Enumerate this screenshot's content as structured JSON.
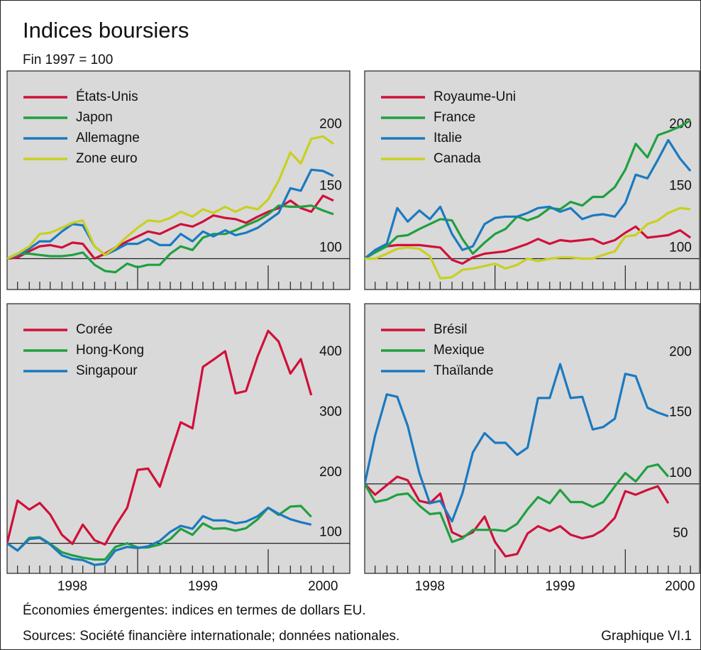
{
  "title": "Indices boursiers",
  "subtitle": "Fin 1997 = 100",
  "notes": [
    "Économies émergentes: indices en termes de dollars EU.",
    "Sources: Société financière internationale; données nationales."
  ],
  "figure_label": "Graphique VI.1",
  "chart_data": [
    {
      "type": "line",
      "legend": "upper left",
      "baseline": 100,
      "x": [
        1998,
        1998.08,
        1998.17,
        1998.25,
        1998.33,
        1998.42,
        1998.5,
        1998.58,
        1998.67,
        1998.75,
        1998.83,
        1998.92,
        1999,
        1999.08,
        1999.17,
        1999.25,
        1999.33,
        1999.42,
        1999.5,
        1999.58,
        1999.67,
        1999.75,
        1999.83,
        1999.92,
        2000,
        2000.08,
        2000.17,
        2000.25,
        2000.33,
        2000.42,
        2000.5
      ],
      "xlim": [
        1998,
        2000.625
      ],
      "xmajorticks": [
        1999,
        2000
      ],
      "xminorticks": [
        1998.08,
        1998.17,
        1998.25,
        1998.33,
        1998.42,
        1998.5,
        1998.58,
        1998.67,
        1998.75,
        1998.83,
        1998.92,
        1999.08,
        1999.17,
        1999.25,
        1999.33,
        1999.42,
        1999.5,
        1999.58,
        1999.67,
        1999.75,
        1999.83,
        1999.92,
        2000.08,
        2000.17,
        2000.25,
        2000.33,
        2000.42,
        2000.5
      ],
      "ylim": [
        75,
        252
      ],
      "yticks": [
        100,
        150,
        200
      ],
      "series": [
        {
          "name": "États-Unis",
          "color": "#d0103a",
          "values": [
            100,
            101,
            106,
            110,
            111,
            109,
            113,
            112,
            100,
            104,
            109,
            114,
            118,
            122,
            120,
            124,
            128,
            126,
            130,
            135,
            133,
            132,
            129,
            134,
            138,
            141,
            147,
            141,
            138,
            151,
            147
          ]
        },
        {
          "name": "Japon",
          "color": "#1fa040",
          "values": [
            100,
            104,
            104,
            103,
            102,
            102,
            103,
            105,
            95,
            90,
            89,
            96,
            93,
            95,
            95,
            104,
            110,
            107,
            117,
            120,
            120,
            123,
            127,
            131,
            136,
            143,
            142,
            142,
            143,
            139,
            136
          ]
        },
        {
          "name": "Allemagne",
          "color": "#1a7ac0",
          "values": [
            100,
            103,
            108,
            114,
            114,
            122,
            128,
            127,
            110,
            103,
            107,
            112,
            112,
            116,
            111,
            111,
            120,
            114,
            122,
            118,
            123,
            119,
            121,
            125,
            131,
            137,
            157,
            155,
            172,
            171,
            167
          ]
        },
        {
          "name": "Zone euro",
          "color": "#c8d020",
          "values": [
            100,
            104,
            110,
            120,
            121,
            125,
            129,
            131,
            110,
            103,
            109,
            118,
            125,
            131,
            130,
            133,
            138,
            134,
            140,
            137,
            142,
            138,
            142,
            140,
            148,
            163,
            186,
            177,
            197,
            199,
            193
          ]
        }
      ]
    },
    {
      "type": "line",
      "legend": "upper left",
      "baseline": 100,
      "x": [
        1998,
        1998.08,
        1998.17,
        1998.25,
        1998.33,
        1998.42,
        1998.5,
        1998.58,
        1998.67,
        1998.75,
        1998.83,
        1998.92,
        1999,
        1999.08,
        1999.17,
        1999.25,
        1999.33,
        1999.42,
        1999.5,
        1999.58,
        1999.67,
        1999.75,
        1999.83,
        1999.92,
        2000,
        2000.08,
        2000.17,
        2000.25,
        2000.33,
        2000.42,
        2000.5
      ],
      "xlim": [
        1998,
        2000.57
      ],
      "xmajorticks": [
        1999,
        2000
      ],
      "xminorticks": [
        1998.08,
        1998.17,
        1998.25,
        1998.33,
        1998.42,
        1998.5,
        1998.58,
        1998.67,
        1998.75,
        1998.83,
        1998.92,
        1999.08,
        1999.17,
        1999.25,
        1999.33,
        1999.42,
        1999.5,
        1999.58,
        1999.67,
        1999.75,
        1999.83,
        1999.92,
        2000.08,
        2000.17,
        2000.25,
        2000.33,
        2000.42,
        2000.5
      ],
      "ylim": [
        75,
        252
      ],
      "yticks": [
        100,
        150,
        200
      ],
      "series": [
        {
          "name": "Royaume-Uni",
          "color": "#d0103a",
          "values": [
            100,
            106,
            110,
            111,
            111,
            111,
            110,
            109,
            99,
            96,
            101,
            104,
            105,
            106,
            109,
            112,
            116,
            112,
            115,
            114,
            115,
            116,
            112,
            115,
            121,
            126,
            117,
            118,
            119,
            123,
            117
          ]
        },
        {
          "name": "France",
          "color": "#1fa040",
          "values": [
            100,
            105,
            110,
            118,
            119,
            124,
            128,
            132,
            131,
            116,
            104,
            113,
            120,
            124,
            134,
            131,
            134,
            141,
            140,
            146,
            143,
            150,
            150,
            158,
            172,
            193,
            182,
            200,
            203,
            207,
            212
          ]
        },
        {
          "name": "Italie",
          "color": "#1a7ac0",
          "values": [
            100,
            107,
            112,
            141,
            130,
            139,
            132,
            142,
            120,
            107,
            110,
            128,
            133,
            134,
            134,
            137,
            141,
            142,
            138,
            141,
            132,
            135,
            136,
            134,
            145,
            168,
            165,
            180,
            196,
            181,
            171
          ]
        },
        {
          "name": "Canada",
          "color": "#c8d020",
          "values": [
            100,
            100,
            104,
            108,
            109,
            108,
            102,
            84,
            85,
            91,
            92,
            94,
            96,
            92,
            95,
            100,
            98,
            100,
            101,
            101,
            100,
            100,
            103,
            106,
            118,
            119,
            128,
            131,
            137,
            141,
            140
          ]
        }
      ]
    },
    {
      "type": "line",
      "legend": "upper left",
      "baseline": 100,
      "x": [
        1998,
        1998.08,
        1998.17,
        1998.25,
        1998.33,
        1998.42,
        1998.5,
        1998.58,
        1998.67,
        1998.75,
        1998.83,
        1998.92,
        1999,
        1999.08,
        1999.17,
        1999.25,
        1999.33,
        1999.42,
        1999.5,
        1999.58,
        1999.67,
        1999.75,
        1999.83,
        1999.92,
        2000,
        2000.08,
        2000.17,
        2000.25,
        2000.33
      ],
      "xlim": [
        1998,
        2000.625
      ],
      "xmajorticks": [
        1999,
        2000
      ],
      "xminorticks": [
        1998.08,
        1998.17,
        1998.25,
        1998.33,
        1998.42,
        1998.5,
        1998.58,
        1998.67,
        1998.75,
        1998.83,
        1998.92,
        1999.08,
        1999.17,
        1999.25,
        1999.33,
        1999.42,
        1999.5,
        1999.58,
        1999.67,
        1999.75,
        1999.83,
        1999.92,
        2000.08,
        2000.17,
        2000.25,
        2000.33,
        2000.42,
        2000.5
      ],
      "xticks": [
        {
          "value": 1998.5,
          "label": "1998"
        },
        {
          "value": 1999.5,
          "label": "1999"
        },
        {
          "value": 2000.42,
          "label": "2000"
        }
      ],
      "ylim": [
        50,
        498
      ],
      "yticks": [
        100,
        200,
        300,
        400
      ],
      "series": [
        {
          "name": "Corée",
          "color": "#d0103a",
          "values": [
            100,
            171,
            156,
            167,
            148,
            114,
            99,
            131,
            105,
            98,
            129,
            159,
            222,
            224,
            194,
            248,
            301,
            291,
            393,
            405,
            419,
            349,
            353,
            411,
            453,
            435,
            382,
            406,
            346
          ]
        },
        {
          "name": "Hong-Kong",
          "color": "#1fa040",
          "values": [
            100,
            88,
            109,
            110,
            99,
            85,
            80,
            76,
            73,
            73,
            94,
            100,
            93,
            93,
            98,
            107,
            124,
            114,
            133,
            124,
            125,
            121,
            125,
            140,
            159,
            147,
            161,
            162,
            144
          ]
        },
        {
          "name": "Singapour",
          "color": "#1a7ac0",
          "values": [
            100,
            88,
            107,
            109,
            98,
            80,
            74,
            72,
            64,
            66,
            88,
            94,
            92,
            95,
            104,
            119,
            129,
            124,
            145,
            138,
            138,
            133,
            136,
            145,
            159,
            149,
            140,
            135,
            131
          ]
        }
      ]
    },
    {
      "type": "line",
      "legend": "upper left",
      "baseline": 100,
      "x": [
        1998,
        1998.08,
        1998.17,
        1998.25,
        1998.33,
        1998.42,
        1998.5,
        1998.58,
        1998.67,
        1998.75,
        1998.83,
        1998.92,
        1999,
        1999.08,
        1999.17,
        1999.25,
        1999.33,
        1999.42,
        1999.5,
        1999.58,
        1999.67,
        1999.75,
        1999.83,
        1999.92,
        2000,
        2000.08,
        2000.17,
        2000.25,
        2000.33
      ],
      "xlim": [
        1998,
        2000.57
      ],
      "xmajorticks": [
        1999,
        2000
      ],
      "xminorticks": [
        1998.08,
        1998.17,
        1998.25,
        1998.33,
        1998.42,
        1998.5,
        1998.58,
        1998.67,
        1998.75,
        1998.83,
        1998.92,
        1999.08,
        1999.17,
        1999.25,
        1999.33,
        1999.42,
        1999.5,
        1999.58,
        1999.67,
        1999.75,
        1999.83,
        1999.92,
        2000.08,
        2000.17,
        2000.25,
        2000.33,
        2000.42,
        2000.5
      ],
      "xticks": [
        {
          "value": 1998.5,
          "label": "1998"
        },
        {
          "value": 1999.5,
          "label": "1999"
        },
        {
          "value": 2000.42,
          "label": "2000"
        }
      ],
      "ylim": [
        26,
        249
      ],
      "yticks": [
        50,
        100,
        150,
        200
      ],
      "series": [
        {
          "name": "Brésil",
          "color": "#d0103a",
          "values": [
            100,
            91,
            99,
            106,
            103,
            86,
            84,
            92,
            60,
            56,
            60,
            73,
            52,
            40,
            42,
            59,
            65,
            61,
            65,
            58,
            55,
            57,
            62,
            72,
            94,
            91,
            95,
            98,
            84
          ]
        },
        {
          "name": "Mexique",
          "color": "#1fa040",
          "values": [
            100,
            85,
            87,
            91,
            92,
            82,
            75,
            76,
            52,
            55,
            62,
            62,
            62,
            61,
            67,
            79,
            89,
            84,
            95,
            85,
            85,
            81,
            85,
            98,
            109,
            102,
            114,
            116,
            106
          ]
        },
        {
          "name": "Thaïlande",
          "color": "#1a7ac0",
          "values": [
            100,
            140,
            174,
            172,
            148,
            109,
            84,
            86,
            69,
            92,
            126,
            142,
            134,
            134,
            124,
            130,
            171,
            171,
            199,
            171,
            172,
            145,
            147,
            154,
            191,
            189,
            163,
            159,
            156
          ]
        }
      ]
    }
  ]
}
